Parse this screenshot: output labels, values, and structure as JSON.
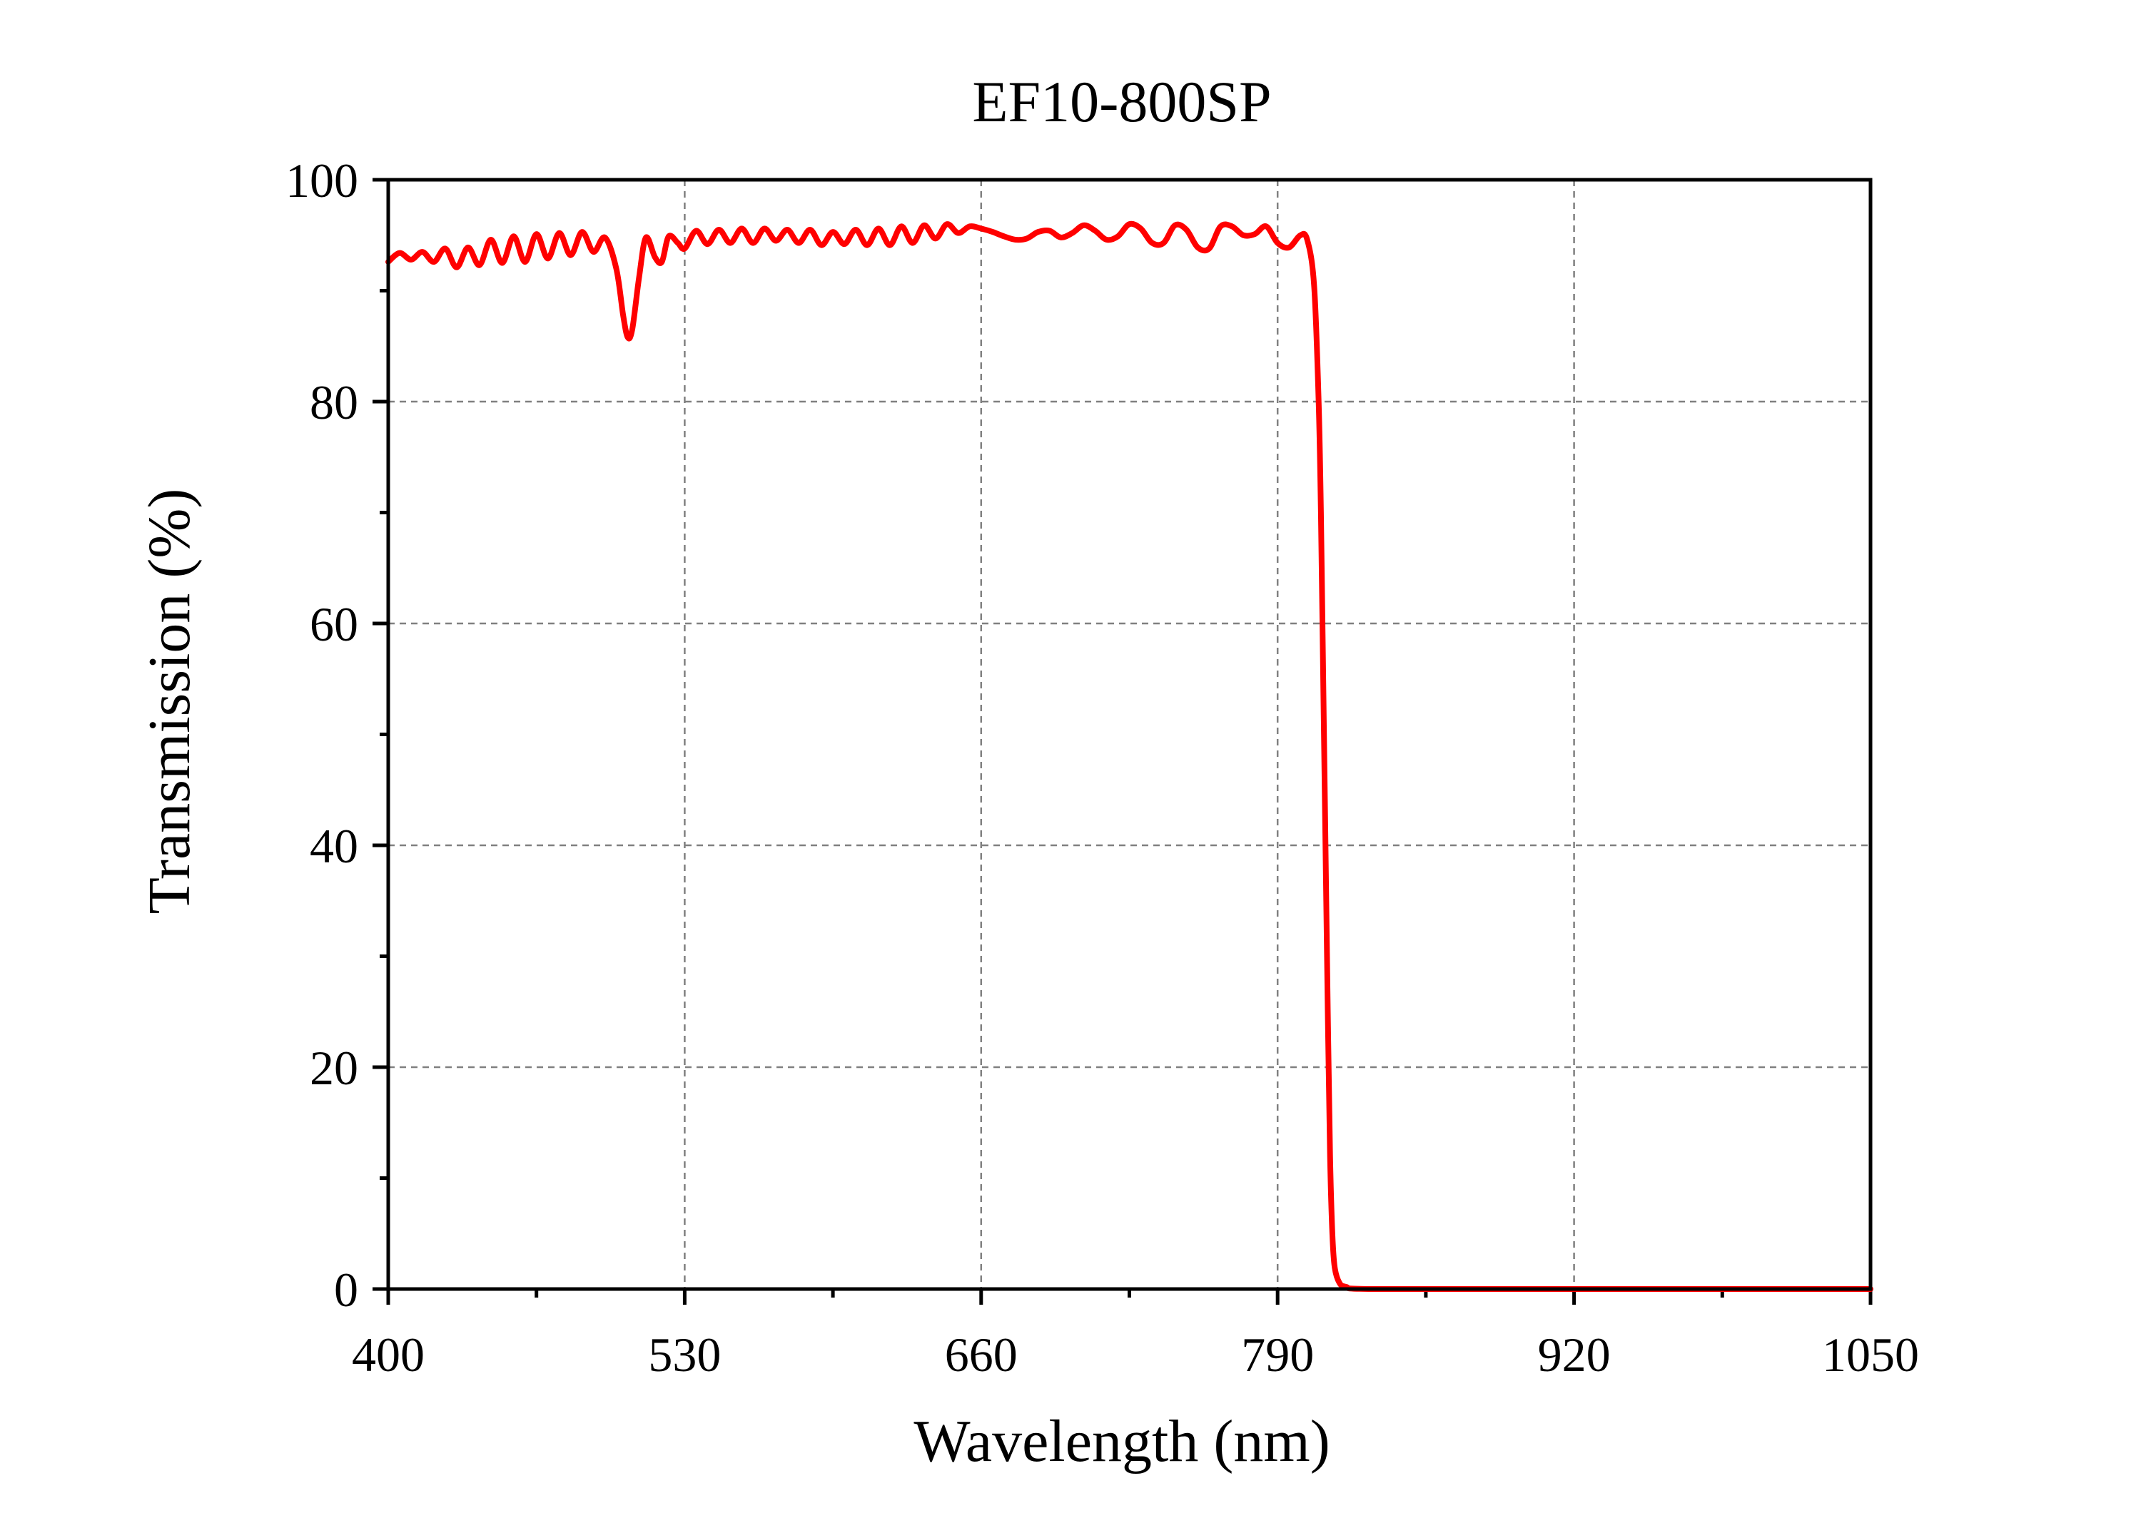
{
  "chart_data": {
    "type": "line",
    "title": "EF10-800SP",
    "xlabel": "Wavelength (nm)",
    "ylabel": "Transmission (%)",
    "xlim": [
      400,
      1050
    ],
    "ylim": [
      0,
      100
    ],
    "x_ticks": [
      "400",
      "530",
      "660",
      "790",
      "920",
      "1050"
    ],
    "y_ticks": [
      "0",
      "20",
      "40",
      "60",
      "80",
      "100"
    ],
    "grid": true,
    "line_color": "#ff0000",
    "series": [
      {
        "points": [
          [
            400,
            92.6
          ],
          [
            405,
            93.4
          ],
          [
            410,
            92.8
          ],
          [
            415,
            93.5
          ],
          [
            420,
            92.6
          ],
          [
            425,
            93.8
          ],
          [
            430,
            92.1
          ],
          [
            435,
            93.9
          ],
          [
            440,
            92.3
          ],
          [
            445,
            94.6
          ],
          [
            450,
            92.5
          ],
          [
            455,
            94.9
          ],
          [
            460,
            92.6
          ],
          [
            465,
            95.1
          ],
          [
            470,
            92.9
          ],
          [
            475,
            95.2
          ],
          [
            480,
            93.2
          ],
          [
            485,
            95.3
          ],
          [
            490,
            93.5
          ],
          [
            495,
            94.8
          ],
          [
            500,
            92.0
          ],
          [
            503,
            87.8
          ],
          [
            505,
            85.8
          ],
          [
            507,
            86.5
          ],
          [
            510,
            91.2
          ],
          [
            513,
            94.8
          ],
          [
            517,
            93.0
          ],
          [
            520,
            92.6
          ],
          [
            523,
            94.9
          ],
          [
            527,
            94.3
          ],
          [
            530,
            93.8
          ],
          [
            535,
            95.4
          ],
          [
            540,
            94.2
          ],
          [
            545,
            95.5
          ],
          [
            550,
            94.3
          ],
          [
            555,
            95.6
          ],
          [
            560,
            94.3
          ],
          [
            565,
            95.6
          ],
          [
            570,
            94.5
          ],
          [
            575,
            95.5
          ],
          [
            580,
            94.3
          ],
          [
            585,
            95.5
          ],
          [
            590,
            94.1
          ],
          [
            595,
            95.3
          ],
          [
            600,
            94.2
          ],
          [
            605,
            95.5
          ],
          [
            610,
            94.1
          ],
          [
            615,
            95.6
          ],
          [
            620,
            94.1
          ],
          [
            625,
            95.8
          ],
          [
            630,
            94.3
          ],
          [
            635,
            95.9
          ],
          [
            640,
            94.7
          ],
          [
            645,
            96.0
          ],
          [
            650,
            95.2
          ],
          [
            655,
            95.8
          ],
          [
            660,
            95.6
          ],
          [
            665,
            95.3
          ],
          [
            670,
            94.9
          ],
          [
            675,
            94.6
          ],
          [
            680,
            94.7
          ],
          [
            685,
            95.3
          ],
          [
            690,
            95.4
          ],
          [
            695,
            94.8
          ],
          [
            700,
            95.2
          ],
          [
            705,
            95.9
          ],
          [
            710,
            95.4
          ],
          [
            715,
            94.6
          ],
          [
            720,
            94.9
          ],
          [
            725,
            96.0
          ],
          [
            730,
            95.6
          ],
          [
            735,
            94.3
          ],
          [
            740,
            94.3
          ],
          [
            745,
            95.9
          ],
          [
            750,
            95.5
          ],
          [
            755,
            93.9
          ],
          [
            760,
            93.8
          ],
          [
            765,
            95.8
          ],
          [
            770,
            95.8
          ],
          [
            775,
            95.0
          ],
          [
            780,
            95.1
          ],
          [
            785,
            95.8
          ],
          [
            790,
            94.3
          ],
          [
            795,
            93.9
          ],
          [
            800,
            95.0
          ],
          [
            803,
            94.6
          ],
          [
            806,
            90.5
          ],
          [
            808,
            80.0
          ],
          [
            809,
            70.0
          ],
          [
            810,
            55.0
          ],
          [
            811,
            40.0
          ],
          [
            812,
            25.0
          ],
          [
            813,
            12.0
          ],
          [
            814,
            5.0
          ],
          [
            815,
            2.0
          ],
          [
            817,
            0.6
          ],
          [
            820,
            0.2
          ],
          [
            830,
            0.0
          ],
          [
            900,
            0.0
          ],
          [
            1000,
            0.0
          ],
          [
            1050,
            0.0
          ]
        ]
      }
    ]
  }
}
